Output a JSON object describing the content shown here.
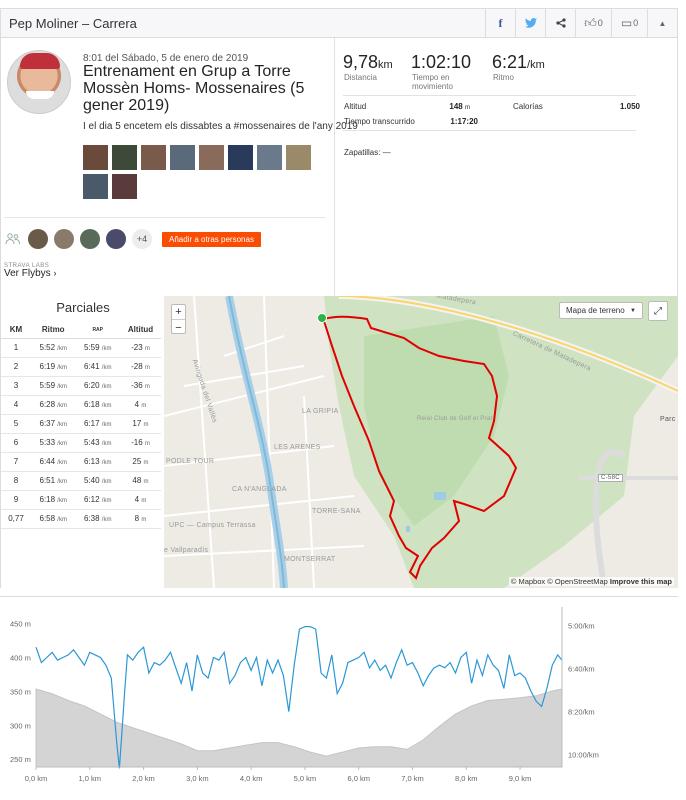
{
  "header": {
    "title": "Pep Moliner – Carrera",
    "kudos_count": "0",
    "comments_count": "0"
  },
  "activity": {
    "date": "8:01 del Sábado, 5 de enero de 2019",
    "title": "Entrenament en Grup a Torre Mossèn Homs- Mossenaires (5 gener 2019)",
    "description": "I el dia 5 encetem els dissabtes a #mossenaires de l'any 2019",
    "photo_colors": [
      "#6a4a3a",
      "#3d4a3a",
      "#7a5a4a",
      "#5a6a7a",
      "#8a6a5a",
      "#2a3a5a",
      "#6a7a8a",
      "#9a8a6a",
      "#4a5a6a",
      "#5a3a3a"
    ],
    "kudoers_colors": [
      "#6a5a4a",
      "#8a7a6a",
      "#5a6a5a",
      "#4a4a6a"
    ],
    "kudoers_more": "+4",
    "add_people_label": "Añadir a otras personas",
    "labs_label": "STRAVA LABS",
    "flybys_label": "Ver Flybys"
  },
  "stats": {
    "distance": {
      "value": "9,78",
      "unit": "km",
      "label": "Distancia"
    },
    "moving_time": {
      "value": "1:02:10",
      "label": "Tiempo en movimiento"
    },
    "pace": {
      "value": "6:21",
      "unit": "/km",
      "label": "Ritmo"
    },
    "elevation_label": "Altitud",
    "elevation_value": "148",
    "elevation_unit": "m",
    "calories_label": "Calorías",
    "calories_value": "1.050",
    "elapsed_label": "Tiempo transcurrido",
    "elapsed_value": "1:17:20",
    "shoes_label": "Zapatillas: —"
  },
  "splits": {
    "title": "Parciales",
    "headers": {
      "km": "KM",
      "pace": "Ritmo",
      "gap": "RAP",
      "elev": "Altitud"
    },
    "pace_unit": "/km",
    "elev_unit": "m",
    "rows": [
      {
        "km": "1",
        "pace": "5:52",
        "gap": "5:59",
        "elev": "-23"
      },
      {
        "km": "2",
        "pace": "6:19",
        "gap": "6:41",
        "elev": "-28"
      },
      {
        "km": "3",
        "pace": "5:59",
        "gap": "6:20",
        "elev": "-36"
      },
      {
        "km": "4",
        "pace": "6:28",
        "gap": "6:18",
        "elev": "4"
      },
      {
        "km": "5",
        "pace": "6:37",
        "gap": "6:17",
        "elev": "17"
      },
      {
        "km": "6",
        "pace": "5:33",
        "gap": "5:43",
        "elev": "-16"
      },
      {
        "km": "7",
        "pace": "6:44",
        "gap": "6:13",
        "elev": "25"
      },
      {
        "km": "8",
        "pace": "6:51",
        "gap": "5:40",
        "elev": "48"
      },
      {
        "km": "9",
        "pace": "6:18",
        "gap": "6:12",
        "elev": "4"
      },
      {
        "km": "0,77",
        "pace": "6:58",
        "gap": "6:38",
        "elev": "8"
      }
    ]
  },
  "map": {
    "map_type": "Mapa de terreno",
    "attribution": "© Mapbox © OpenStreetMap",
    "improve": "Improve this map",
    "labels": [
      "Carretera de Matadepera",
      "Avinguda del Vallès",
      "LA GRIPIA",
      "LES ARENES",
      "CA N'ANGLADA",
      "TORRE-SANA",
      "MONTSERRAT",
      "PODLE TOUR",
      "UPC — Campus Terrassa",
      "e Vallparadís",
      "Reial Club de Golf el Prat",
      "C-58C",
      "Parc",
      "Matadepera"
    ]
  },
  "chart_data": {
    "type": "line",
    "xlabel": "",
    "x_unit": "km",
    "x_ticks": [
      "0,0 km",
      "1,0 km",
      "2,0 km",
      "3,0 km",
      "4,0 km",
      "5,0 km",
      "6,0 km",
      "7,0 km",
      "8,0 km",
      "9,0 km"
    ],
    "y_left_ticks": [
      "450 m",
      "400 m",
      "350 m",
      "300 m",
      "250 m"
    ],
    "y_right_ticks": [
      "5:00/km",
      "6:40/km",
      "8:20/km",
      "10:00/km"
    ],
    "y_left_range": [
      240,
      470
    ],
    "x_range": [
      0,
      9.78
    ],
    "series": [
      {
        "x": [
          0,
          0.3,
          0.6,
          0.9,
          1.2,
          1.5,
          1.8,
          2.1,
          2.4,
          2.7,
          3.0,
          3.3,
          3.6,
          3.9,
          4.2,
          4.5,
          4.8,
          5.1,
          5.4,
          5.7,
          6.0,
          6.3,
          6.6,
          6.9,
          7.2,
          7.5,
          7.8,
          8.1,
          8.4,
          8.7,
          9.0,
          9.3,
          9.6,
          9.78
        ],
        "elevation_m": [
          355,
          348,
          338,
          330,
          318,
          306,
          298,
          290,
          282,
          274,
          264,
          264,
          268,
          272,
          276,
          276,
          270,
          262,
          256,
          262,
          268,
          270,
          270,
          266,
          280,
          300,
          318,
          330,
          338,
          340,
          342,
          345,
          352,
          355
        ]
      },
      {
        "x": [
          0,
          0.1,
          0.2,
          0.3,
          0.4,
          0.5,
          0.6,
          0.7,
          0.8,
          0.9,
          1.0,
          1.1,
          1.2,
          1.3,
          1.4,
          1.5,
          1.55,
          1.6,
          1.65,
          1.7,
          1.8,
          1.9,
          2.0,
          2.1,
          2.2,
          2.3,
          2.4,
          2.5,
          2.6,
          2.7,
          2.8,
          2.9,
          3.0,
          3.1,
          3.2,
          3.3,
          3.4,
          3.5,
          3.6,
          3.7,
          3.8,
          3.9,
          4.0,
          4.1,
          4.2,
          4.3,
          4.4,
          4.5,
          4.6,
          4.7,
          4.8,
          4.9,
          5.0,
          5.1,
          5.2,
          5.3,
          5.4,
          5.5,
          5.6,
          5.7,
          5.8,
          5.9,
          6.0,
          6.1,
          6.2,
          6.3,
          6.4,
          6.5,
          6.6,
          6.7,
          6.8,
          6.9,
          7.0,
          7.1,
          7.2,
          7.3,
          7.4,
          7.5,
          7.6,
          7.7,
          7.8,
          7.9,
          8.0,
          8.1,
          8.2,
          8.3,
          8.4,
          8.5,
          8.6,
          8.7,
          8.8,
          8.9,
          9.0,
          9.1,
          9.2,
          9.3,
          9.4,
          9.5,
          9.6,
          9.7,
          9.78
        ],
        "pace_min_km": [
          5.8,
          6.4,
          6.2,
          6.0,
          6.3,
          6.2,
          6.1,
          5.9,
          6.2,
          6.5,
          6.0,
          6.1,
          6.2,
          6.5,
          7.0,
          9.5,
          10.5,
          9.0,
          7.5,
          6.1,
          6.3,
          6.0,
          5.8,
          6.8,
          6.4,
          6.5,
          6.3,
          6.0,
          6.6,
          7.2,
          6.4,
          7.5,
          6.1,
          6.8,
          7.0,
          6.2,
          6.3,
          6.0,
          7.2,
          6.9,
          6.4,
          6.2,
          6.7,
          6.2,
          7.3,
          6.3,
          6.8,
          6.3,
          6.9,
          8.3,
          6.5,
          5.1,
          5.0,
          5.0,
          5.1,
          6.8,
          7.0,
          6.1,
          7.6,
          7.2,
          6.4,
          6.3,
          6.2,
          6.0,
          6.6,
          6.3,
          6.7,
          6.5,
          7.0,
          6.4,
          5.9,
          6.5,
          6.4,
          6.8,
          7.3,
          6.9,
          6.6,
          6.5,
          6.6,
          6.4,
          6.8,
          6.2,
          6.0,
          7.2,
          6.3,
          6.9,
          6.1,
          6.5,
          6.7,
          7.4,
          6.1,
          6.9,
          6.8,
          7.0,
          7.5,
          7.9,
          8.1,
          7.4,
          6.5,
          6.1,
          6.3
        ]
      }
    ]
  }
}
